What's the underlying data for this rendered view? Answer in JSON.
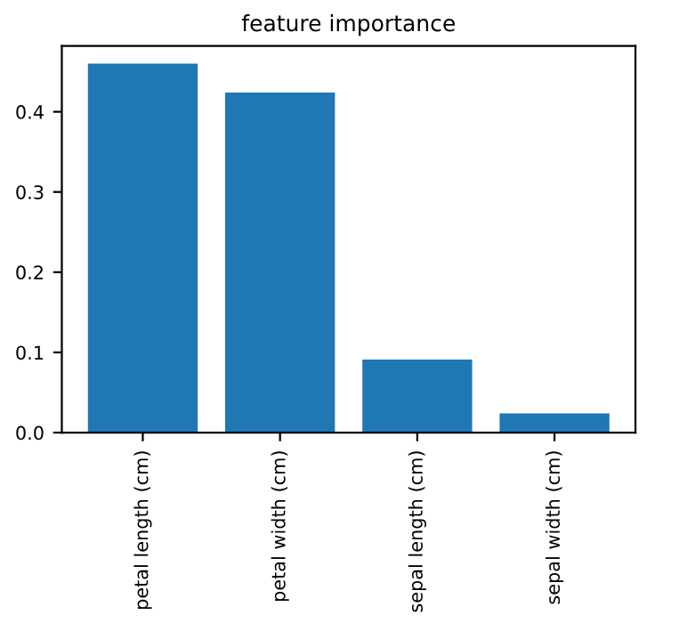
{
  "chart_data": {
    "type": "bar",
    "title": "feature importance",
    "categories": [
      "petal length (cm)",
      "petal width (cm)",
      "sepal length (cm)",
      "sepal width (cm)"
    ],
    "values": [
      0.46,
      0.424,
      0.091,
      0.024
    ],
    "color": "#1f77b4",
    "ylim": [
      0,
      0.482
    ],
    "yticks": [
      {
        "value": 0,
        "label": "0.0"
      },
      0.1,
      0.2,
      0.3,
      0.4
    ],
    "grid": false
  }
}
